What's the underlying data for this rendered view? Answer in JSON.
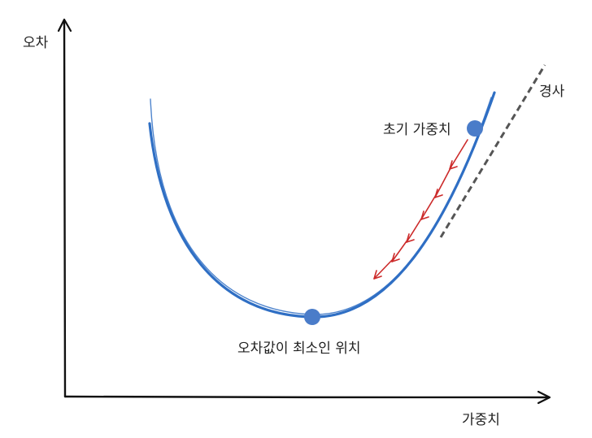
{
  "labels": {
    "y_axis": "오차",
    "x_axis": "가중치",
    "initial_weight": "초기 가중치",
    "minimum": "오차값이 최소인 위치",
    "gradient": "경사"
  },
  "colors": {
    "curve": "#2f6fc4",
    "point": "#4a7cc9",
    "arrow": "#cc2a2a",
    "tangent": "#555555",
    "axis": "#111111"
  }
}
